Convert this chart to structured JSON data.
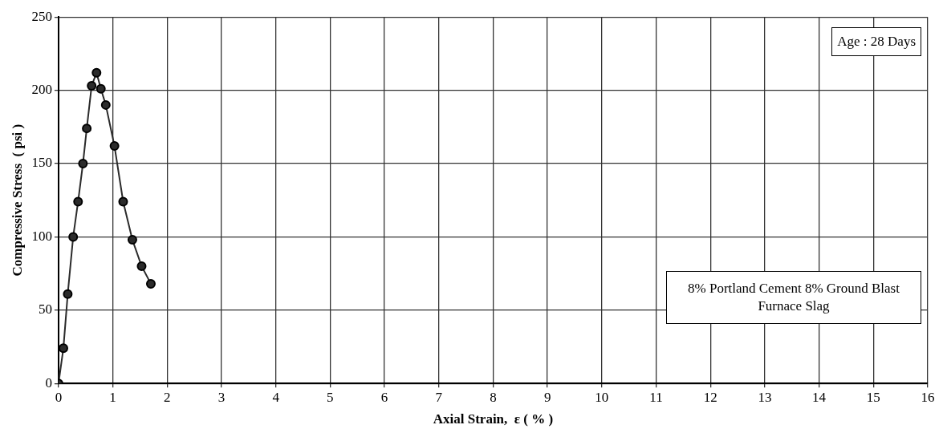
{
  "chart_data": {
    "type": "line",
    "xlabel": "Axial Strain,  ε ( % )",
    "ylabel": "Compressive Stress  ( psi )",
    "annotations": [
      "Age : 28 Days",
      "8% Portland Cement 8% Ground Blast Furnace Slag"
    ],
    "x": [
      0,
      0.09,
      0.17,
      0.27,
      0.36,
      0.45,
      0.52,
      0.61,
      0.7,
      0.78,
      0.87,
      1.03,
      1.19,
      1.36,
      1.53,
      1.7
    ],
    "series": [
      {
        "color": "#2b2b2b",
        "values": [
          0,
          24,
          61,
          100,
          124,
          150,
          174,
          203,
          212,
          201,
          190,
          162,
          124,
          98,
          80,
          68
        ]
      }
    ],
    "xlim": [
      0,
      16
    ],
    "xticks": [
      0,
      1,
      2,
      3,
      4,
      5,
      6,
      7,
      8,
      9,
      10,
      11,
      12,
      13,
      14,
      15,
      16
    ],
    "ylim": [
      0,
      250
    ],
    "yticks": [
      0,
      50,
      100,
      150,
      200,
      250
    ],
    "grid": true,
    "legend": false,
    "marker": "circle",
    "line_style": "solid"
  }
}
